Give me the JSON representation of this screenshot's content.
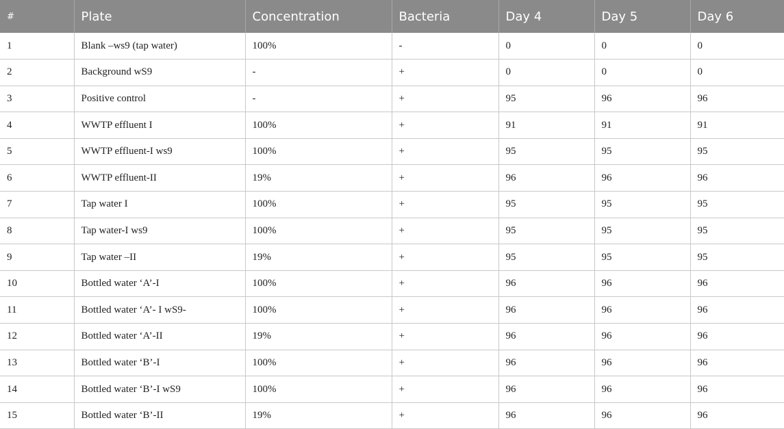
{
  "table": {
    "headers": [
      "#",
      "Plate",
      "Concentration",
      "Bacteria",
      "Day 4",
      "Day 5",
      "Day 6"
    ],
    "rows": [
      [
        "1",
        "Blank –ws9 (tap water)",
        "100%",
        "-",
        "0",
        "0",
        "0"
      ],
      [
        "2",
        "Background wS9",
        "-",
        "+",
        "0",
        "0",
        "0"
      ],
      [
        "3",
        "Positive control",
        "-",
        "+",
        "95",
        "96",
        "96"
      ],
      [
        "4",
        "WWTP effluent I",
        "100%",
        "+",
        "91",
        "91",
        "91"
      ],
      [
        "5",
        "WWTP effluent-I ws9",
        "100%",
        "+",
        "95",
        "95",
        "95"
      ],
      [
        "6",
        "WWTP effluent-II",
        "19%",
        "+",
        "96",
        "96",
        "96"
      ],
      [
        "7",
        "Tap water I",
        "100%",
        "+",
        "95",
        "95",
        "95"
      ],
      [
        "8",
        "Tap water-I ws9",
        "100%",
        "+",
        "95",
        "95",
        "95"
      ],
      [
        "9",
        "Tap water –II",
        "19%",
        "+",
        "95",
        "95",
        "95"
      ],
      [
        "10",
        "Bottled water ‘A’-I",
        "100%",
        "+",
        "96",
        "96",
        "96"
      ],
      [
        "11",
        "Bottled water ‘A’- I wS9-",
        "100%",
        "+",
        "96",
        "96",
        "96"
      ],
      [
        "12",
        "Bottled water ‘A’-II",
        "19%",
        "+",
        "96",
        "96",
        "96"
      ],
      [
        "13",
        "Bottled water ‘B’-I",
        "100%",
        "+",
        "96",
        "96",
        "96"
      ],
      [
        "14",
        "Bottled water ‘B’-I wS9",
        "100%",
        "+",
        "96",
        "96",
        "96"
      ],
      [
        "15",
        "Bottled water ‘B’-II",
        "19%",
        "+",
        "96",
        "96",
        "96"
      ]
    ]
  }
}
